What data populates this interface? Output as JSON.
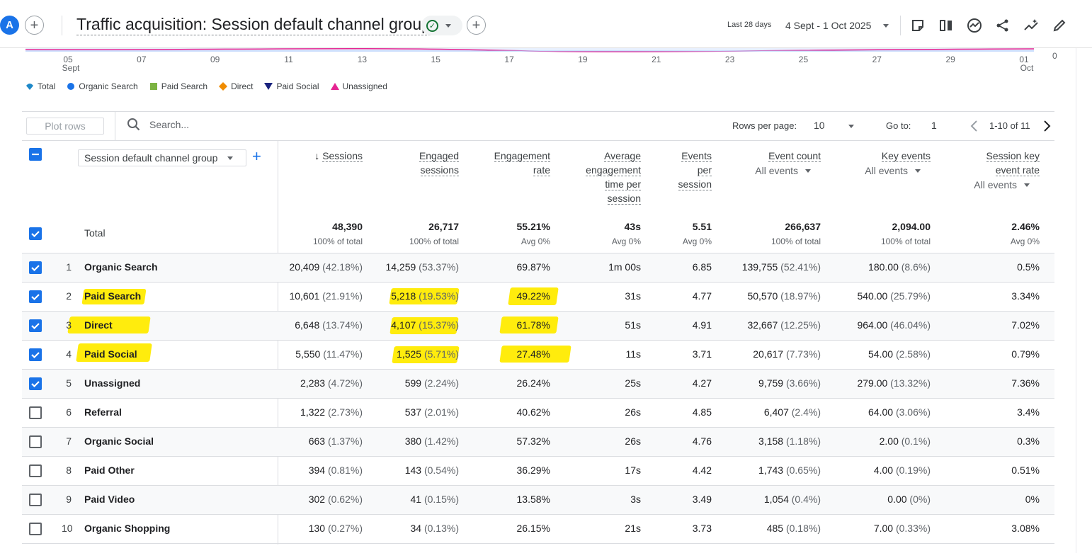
{
  "header": {
    "avatar_letter": "A",
    "title": "Traffic acquisition: Session default channel group",
    "date_label": "Last 28 days",
    "date_range": "4 Sept - 1 Oct 2025"
  },
  "chart_data": {
    "type": "line",
    "x_ticks": [
      {
        "day": "05",
        "month": "Sept"
      },
      {
        "day": "07",
        "month": ""
      },
      {
        "day": "09",
        "month": ""
      },
      {
        "day": "11",
        "month": ""
      },
      {
        "day": "13",
        "month": ""
      },
      {
        "day": "15",
        "month": ""
      },
      {
        "day": "17",
        "month": ""
      },
      {
        "day": "19",
        "month": ""
      },
      {
        "day": "21",
        "month": ""
      },
      {
        "day": "23",
        "month": ""
      },
      {
        "day": "25",
        "month": ""
      },
      {
        "day": "27",
        "month": ""
      },
      {
        "day": "29",
        "month": ""
      },
      {
        "day": "01",
        "month": "Oct"
      }
    ],
    "y_tick": "0",
    "legend": [
      {
        "name": "Total",
        "shape": "drop",
        "color": "#1e88c8"
      },
      {
        "name": "Organic Search",
        "shape": "circle",
        "color": "#1a73e8"
      },
      {
        "name": "Paid Search",
        "shape": "square",
        "color": "#7cb342"
      },
      {
        "name": "Direct",
        "shape": "diamond",
        "color": "#f08c00"
      },
      {
        "name": "Paid Social",
        "shape": "triangle-down",
        "color": "#1a237e"
      },
      {
        "name": "Unassigned",
        "shape": "triangle-up",
        "color": "#e52592"
      }
    ]
  },
  "toolbar": {
    "plot_rows": "Plot rows",
    "search_placeholder": "Search...",
    "rows_per_page_label": "Rows per page:",
    "rows_per_page": "10",
    "goto_label": "Go to:",
    "goto_value": "1",
    "range": "1-10 of 11"
  },
  "table": {
    "dimension": "Session default channel group",
    "columns": [
      {
        "lines": [
          "Sessions"
        ],
        "sorted": true,
        "dropdown": ""
      },
      {
        "lines": [
          "Engaged",
          "sessions"
        ],
        "dropdown": ""
      },
      {
        "lines": [
          "Engagement",
          "rate"
        ],
        "dropdown": ""
      },
      {
        "lines": [
          "Average",
          "engagement",
          "time per",
          "session"
        ],
        "dropdown": ""
      },
      {
        "lines": [
          "Events",
          "per",
          "session"
        ],
        "dropdown": ""
      },
      {
        "lines": [
          "Event count"
        ],
        "dropdown": "All events"
      },
      {
        "lines": [
          "Key events"
        ],
        "dropdown": "All events"
      },
      {
        "lines": [
          "Session key",
          "event rate"
        ],
        "dropdown": "All events"
      }
    ],
    "total": {
      "label": "Total",
      "values": [
        "48,390",
        "26,717",
        "55.21%",
        "43s",
        "5.51",
        "266,637",
        "2,094.00",
        "2.46%"
      ],
      "subs": [
        "100% of total",
        "100% of total",
        "Avg 0%",
        "Avg 0%",
        "Avg 0%",
        "100% of total",
        "100% of total",
        "Avg 0%"
      ]
    },
    "rows": [
      {
        "n": "1",
        "name": "Organic Search",
        "checked": true,
        "cells": [
          [
            "20,409",
            "(42.18%)"
          ],
          [
            "14,259",
            "(53.37%)"
          ],
          [
            "69.87%",
            ""
          ],
          [
            "1m 00s",
            ""
          ],
          [
            "6.85",
            ""
          ],
          [
            "139,755",
            "(52.41%)"
          ],
          [
            "180.00",
            "(8.6%)"
          ],
          [
            "0.5%",
            ""
          ]
        ]
      },
      {
        "n": "2",
        "name": "Paid Search",
        "checked": true,
        "cells": [
          [
            "10,601",
            "(21.91%)"
          ],
          [
            "5,218",
            "(19.53%)"
          ],
          [
            "49.22%",
            ""
          ],
          [
            "31s",
            ""
          ],
          [
            "4.77",
            ""
          ],
          [
            "50,570",
            "(18.97%)"
          ],
          [
            "540.00",
            "(25.79%)"
          ],
          [
            "3.34%",
            ""
          ]
        ]
      },
      {
        "n": "3",
        "name": "Direct",
        "checked": true,
        "cells": [
          [
            "6,648",
            "(13.74%)"
          ],
          [
            "4,107",
            "(15.37%)"
          ],
          [
            "61.78%",
            ""
          ],
          [
            "51s",
            ""
          ],
          [
            "4.91",
            ""
          ],
          [
            "32,667",
            "(12.25%)"
          ],
          [
            "964.00",
            "(46.04%)"
          ],
          [
            "7.02%",
            ""
          ]
        ]
      },
      {
        "n": "4",
        "name": "Paid Social",
        "checked": true,
        "cells": [
          [
            "5,550",
            "(11.47%)"
          ],
          [
            "1,525",
            "(5.71%)"
          ],
          [
            "27.48%",
            ""
          ],
          [
            "11s",
            ""
          ],
          [
            "3.71",
            ""
          ],
          [
            "20,617",
            "(7.73%)"
          ],
          [
            "54.00",
            "(2.58%)"
          ],
          [
            "0.79%",
            ""
          ]
        ]
      },
      {
        "n": "5",
        "name": "Unassigned",
        "checked": true,
        "cells": [
          [
            "2,283",
            "(4.72%)"
          ],
          [
            "599",
            "(2.24%)"
          ],
          [
            "26.24%",
            ""
          ],
          [
            "25s",
            ""
          ],
          [
            "4.27",
            ""
          ],
          [
            "9,759",
            "(3.66%)"
          ],
          [
            "279.00",
            "(13.32%)"
          ],
          [
            "7.36%",
            ""
          ]
        ]
      },
      {
        "n": "6",
        "name": "Referral",
        "checked": false,
        "cells": [
          [
            "1,322",
            "(2.73%)"
          ],
          [
            "537",
            "(2.01%)"
          ],
          [
            "40.62%",
            ""
          ],
          [
            "26s",
            ""
          ],
          [
            "4.85",
            ""
          ],
          [
            "6,407",
            "(2.4%)"
          ],
          [
            "64.00",
            "(3.06%)"
          ],
          [
            "3.4%",
            ""
          ]
        ]
      },
      {
        "n": "7",
        "name": "Organic Social",
        "checked": false,
        "cells": [
          [
            "663",
            "(1.37%)"
          ],
          [
            "380",
            "(1.42%)"
          ],
          [
            "57.32%",
            ""
          ],
          [
            "26s",
            ""
          ],
          [
            "4.76",
            ""
          ],
          [
            "3,158",
            "(1.18%)"
          ],
          [
            "2.00",
            "(0.1%)"
          ],
          [
            "0.3%",
            ""
          ]
        ]
      },
      {
        "n": "8",
        "name": "Paid Other",
        "checked": false,
        "cells": [
          [
            "394",
            "(0.81%)"
          ],
          [
            "143",
            "(0.54%)"
          ],
          [
            "36.29%",
            ""
          ],
          [
            "17s",
            ""
          ],
          [
            "4.42",
            ""
          ],
          [
            "1,743",
            "(0.65%)"
          ],
          [
            "4.00",
            "(0.19%)"
          ],
          [
            "0.51%",
            ""
          ]
        ]
      },
      {
        "n": "9",
        "name": "Paid Video",
        "checked": false,
        "cells": [
          [
            "302",
            "(0.62%)"
          ],
          [
            "41",
            "(0.15%)"
          ],
          [
            "13.58%",
            ""
          ],
          [
            "3s",
            ""
          ],
          [
            "3.49",
            ""
          ],
          [
            "1,054",
            "(0.4%)"
          ],
          [
            "0.00",
            "(0%)"
          ],
          [
            "0%",
            ""
          ]
        ]
      },
      {
        "n": "10",
        "name": "Organic Shopping",
        "checked": false,
        "cells": [
          [
            "130",
            "(0.27%)"
          ],
          [
            "34",
            "(0.13%)"
          ],
          [
            "26.15%",
            ""
          ],
          [
            "21s",
            ""
          ],
          [
            "3.73",
            ""
          ],
          [
            "485",
            "(0.18%)"
          ],
          [
            "7.00",
            "(0.33%)"
          ],
          [
            "3.08%",
            ""
          ]
        ]
      }
    ]
  },
  "highlights": {
    "color": "#ffeb00",
    "marked": [
      "Paid Search",
      "Direct",
      "Paid Social"
    ]
  }
}
